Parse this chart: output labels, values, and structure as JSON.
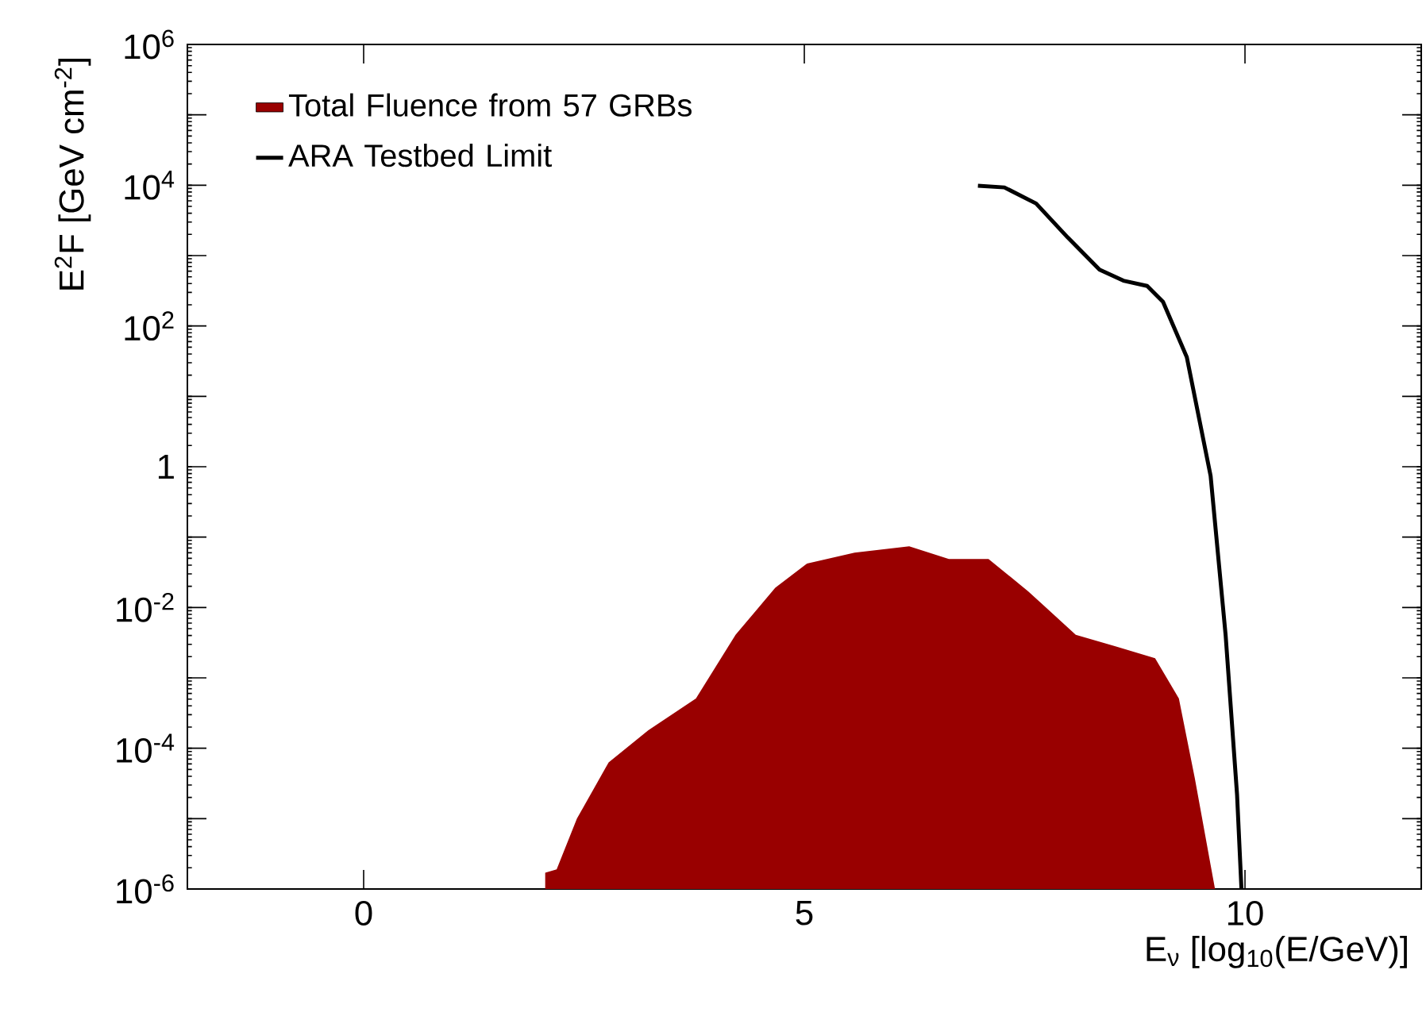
{
  "chart_data": {
    "type": "area",
    "xlabel": "E$_{ν}$ [log$_{10}$(E/GeV)]",
    "ylabel": "E$^{2}$F [GeV cm$^{-2}$]",
    "log": "y",
    "xlim": [
      -2,
      12
    ],
    "ylim": [
      1e-06,
      1000000.0
    ],
    "xticks": [
      0,
      5,
      10
    ],
    "yticks": [
      {
        "value": 1e-06,
        "label": "10$^{-6}$"
      },
      {
        "value": 1e-05,
        "label": null
      },
      {
        "value": 0.0001,
        "label": "10$^{-4}$"
      },
      {
        "value": 0.001,
        "label": null
      },
      {
        "value": 0.01,
        "label": "10$^{-2}$"
      },
      {
        "value": 0.1,
        "label": null
      },
      1,
      {
        "value": 10,
        "label": null
      },
      {
        "value": 100,
        "label": "10$^{2}$"
      },
      {
        "value": 1000,
        "label": null
      },
      {
        "value": 10000.0,
        "label": "10$^{4}$"
      },
      {
        "value": 100000.0,
        "label": null
      },
      {
        "value": 1000000.0,
        "label": "10$^{6}$"
      }
    ],
    "legend": "top left",
    "grid": false,
    "series": [
      {
        "name": "Total Fluence from 57 GRBs",
        "color": "#990000",
        "x": [
          2.06,
          2.06,
          2.19,
          2.42,
          2.78,
          3.23,
          3.77,
          4.22,
          4.67,
          5.03,
          5.57,
          6.19,
          6.64,
          7.09,
          7.54,
          8.08,
          8.53,
          8.98,
          9.25,
          9.43,
          9.61,
          9.66
        ],
        "values": [
          1e-06,
          1.7e-06,
          1.9e-06,
          1e-05,
          6.3e-05,
          0.00018,
          0.00051,
          0.0041,
          0.019,
          0.042,
          0.06,
          0.074,
          0.049,
          0.049,
          0.017,
          0.0041,
          0.0028,
          0.0019,
          0.00051,
          3.8e-05,
          2.2e-06,
          1e-06
        ]
      },
      {
        "name": "ARA Testbed Limit",
        "type": "line",
        "color": "#000000",
        "x": [
          6.97,
          7.27,
          7.63,
          7.99,
          8.35,
          8.62,
          8.89,
          9.07,
          9.34,
          9.61,
          9.78,
          9.91,
          9.96
        ],
        "values": [
          9800,
          9300,
          5500,
          1800,
          630,
          440,
          370,
          220,
          36,
          0.74,
          0.0041,
          2.2e-05,
          1e-06
        ]
      }
    ]
  }
}
